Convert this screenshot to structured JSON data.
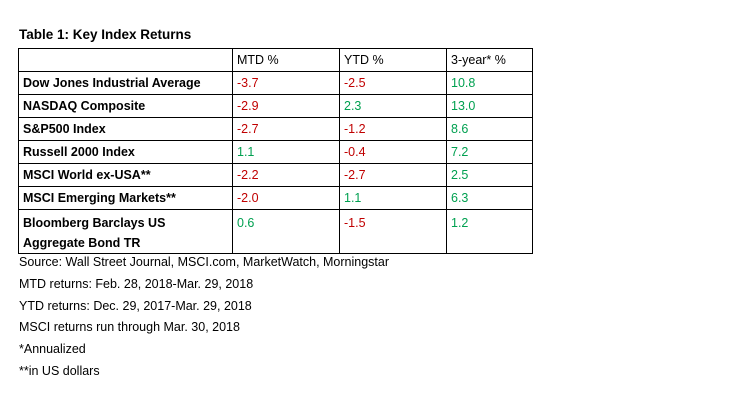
{
  "title": "Table 1: Key Index Returns",
  "columns": [
    "MTD %",
    "YTD %",
    "3-year* %"
  ],
  "rows": [
    {
      "name": "Dow Jones Industrial Average",
      "mtd": "-3.7",
      "ytd": "-2.5",
      "three_year": "10.8"
    },
    {
      "name": "NASDAQ Composite",
      "mtd": "-2.9",
      "ytd": "2.3",
      "three_year": "13.0"
    },
    {
      "name": "S&P500  Index",
      "mtd": "-2.7",
      "ytd": "-1.2",
      "three_year": "8.6"
    },
    {
      "name": "Russell 2000  Index",
      "mtd": "1.1",
      "ytd": "-0.4",
      "three_year": "7.2"
    },
    {
      "name": "MSCI World ex-USA**",
      "mtd": "-2.2",
      "ytd": "-2.7",
      "three_year": "2.5"
    },
    {
      "name": "MSCI Emerging Markets**",
      "mtd": "-2.0",
      "ytd": "1.1",
      "three_year": "6.3"
    },
    {
      "name_line1": "Bloomberg Barclays US",
      "name_line2": "Aggregate Bond TR",
      "mtd": "0.6",
      "ytd": "-1.5",
      "three_year": "1.2"
    }
  ],
  "colors": {
    "negative": "#c00000",
    "positive": "#00a050"
  },
  "notes": [
    "Source: Wall Street Journal, MSCI.com, MarketWatch, Morningstar",
    "MTD returns: Feb. 28, 2018-Mar. 29, 2018",
    "YTD returns: Dec. 29, 2017-Mar. 29, 2018",
    "MSCI returns run through Mar. 30, 2018",
    "*Annualized",
    "**in US dollars"
  ]
}
